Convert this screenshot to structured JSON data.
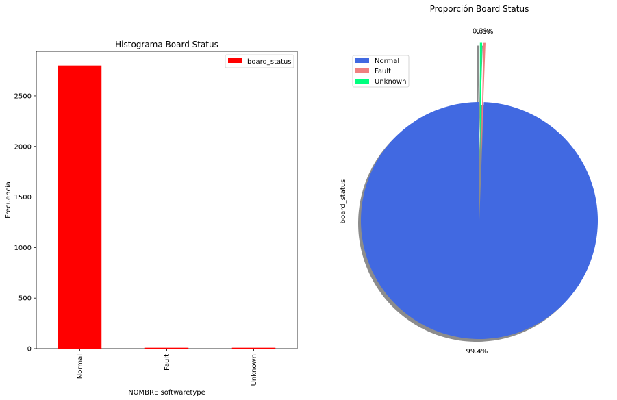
{
  "figure_title": "Proporción Board Status",
  "chart_data": [
    {
      "type": "bar",
      "title": "Histograma Board Status",
      "xlabel": "NOMBRE softwaretype",
      "ylabel": "Frecuencia",
      "categories": [
        "Normal",
        "Fault",
        "Unknown"
      ],
      "series": [
        {
          "name": "board_status",
          "values": [
            2800,
            9,
            9
          ],
          "color": "#ff0000"
        }
      ],
      "ylim": [
        0,
        2940
      ],
      "yticks": [
        0,
        500,
        1000,
        1500,
        2000,
        2500
      ],
      "ytick_labels": [
        "0",
        "500",
        "1000",
        "1500",
        "2000",
        "2500"
      ],
      "legend_position": "upper right",
      "grid": false
    },
    {
      "type": "pie",
      "title": "Proporción Board Status",
      "ylabel": "board_status",
      "labels": [
        "Normal",
        "Fault",
        "Unknown"
      ],
      "values": [
        99.4,
        0.3,
        0.3
      ],
      "value_labels": [
        "99.4%",
        "0.3%",
        "0.3%"
      ],
      "colors": [
        "#4169e1",
        "#f08080",
        "#00ff7f"
      ],
      "explode": [
        0,
        0.5,
        0.5
      ],
      "shadow": true,
      "start_angle_deg": 90,
      "legend_position": "upper left"
    }
  ]
}
